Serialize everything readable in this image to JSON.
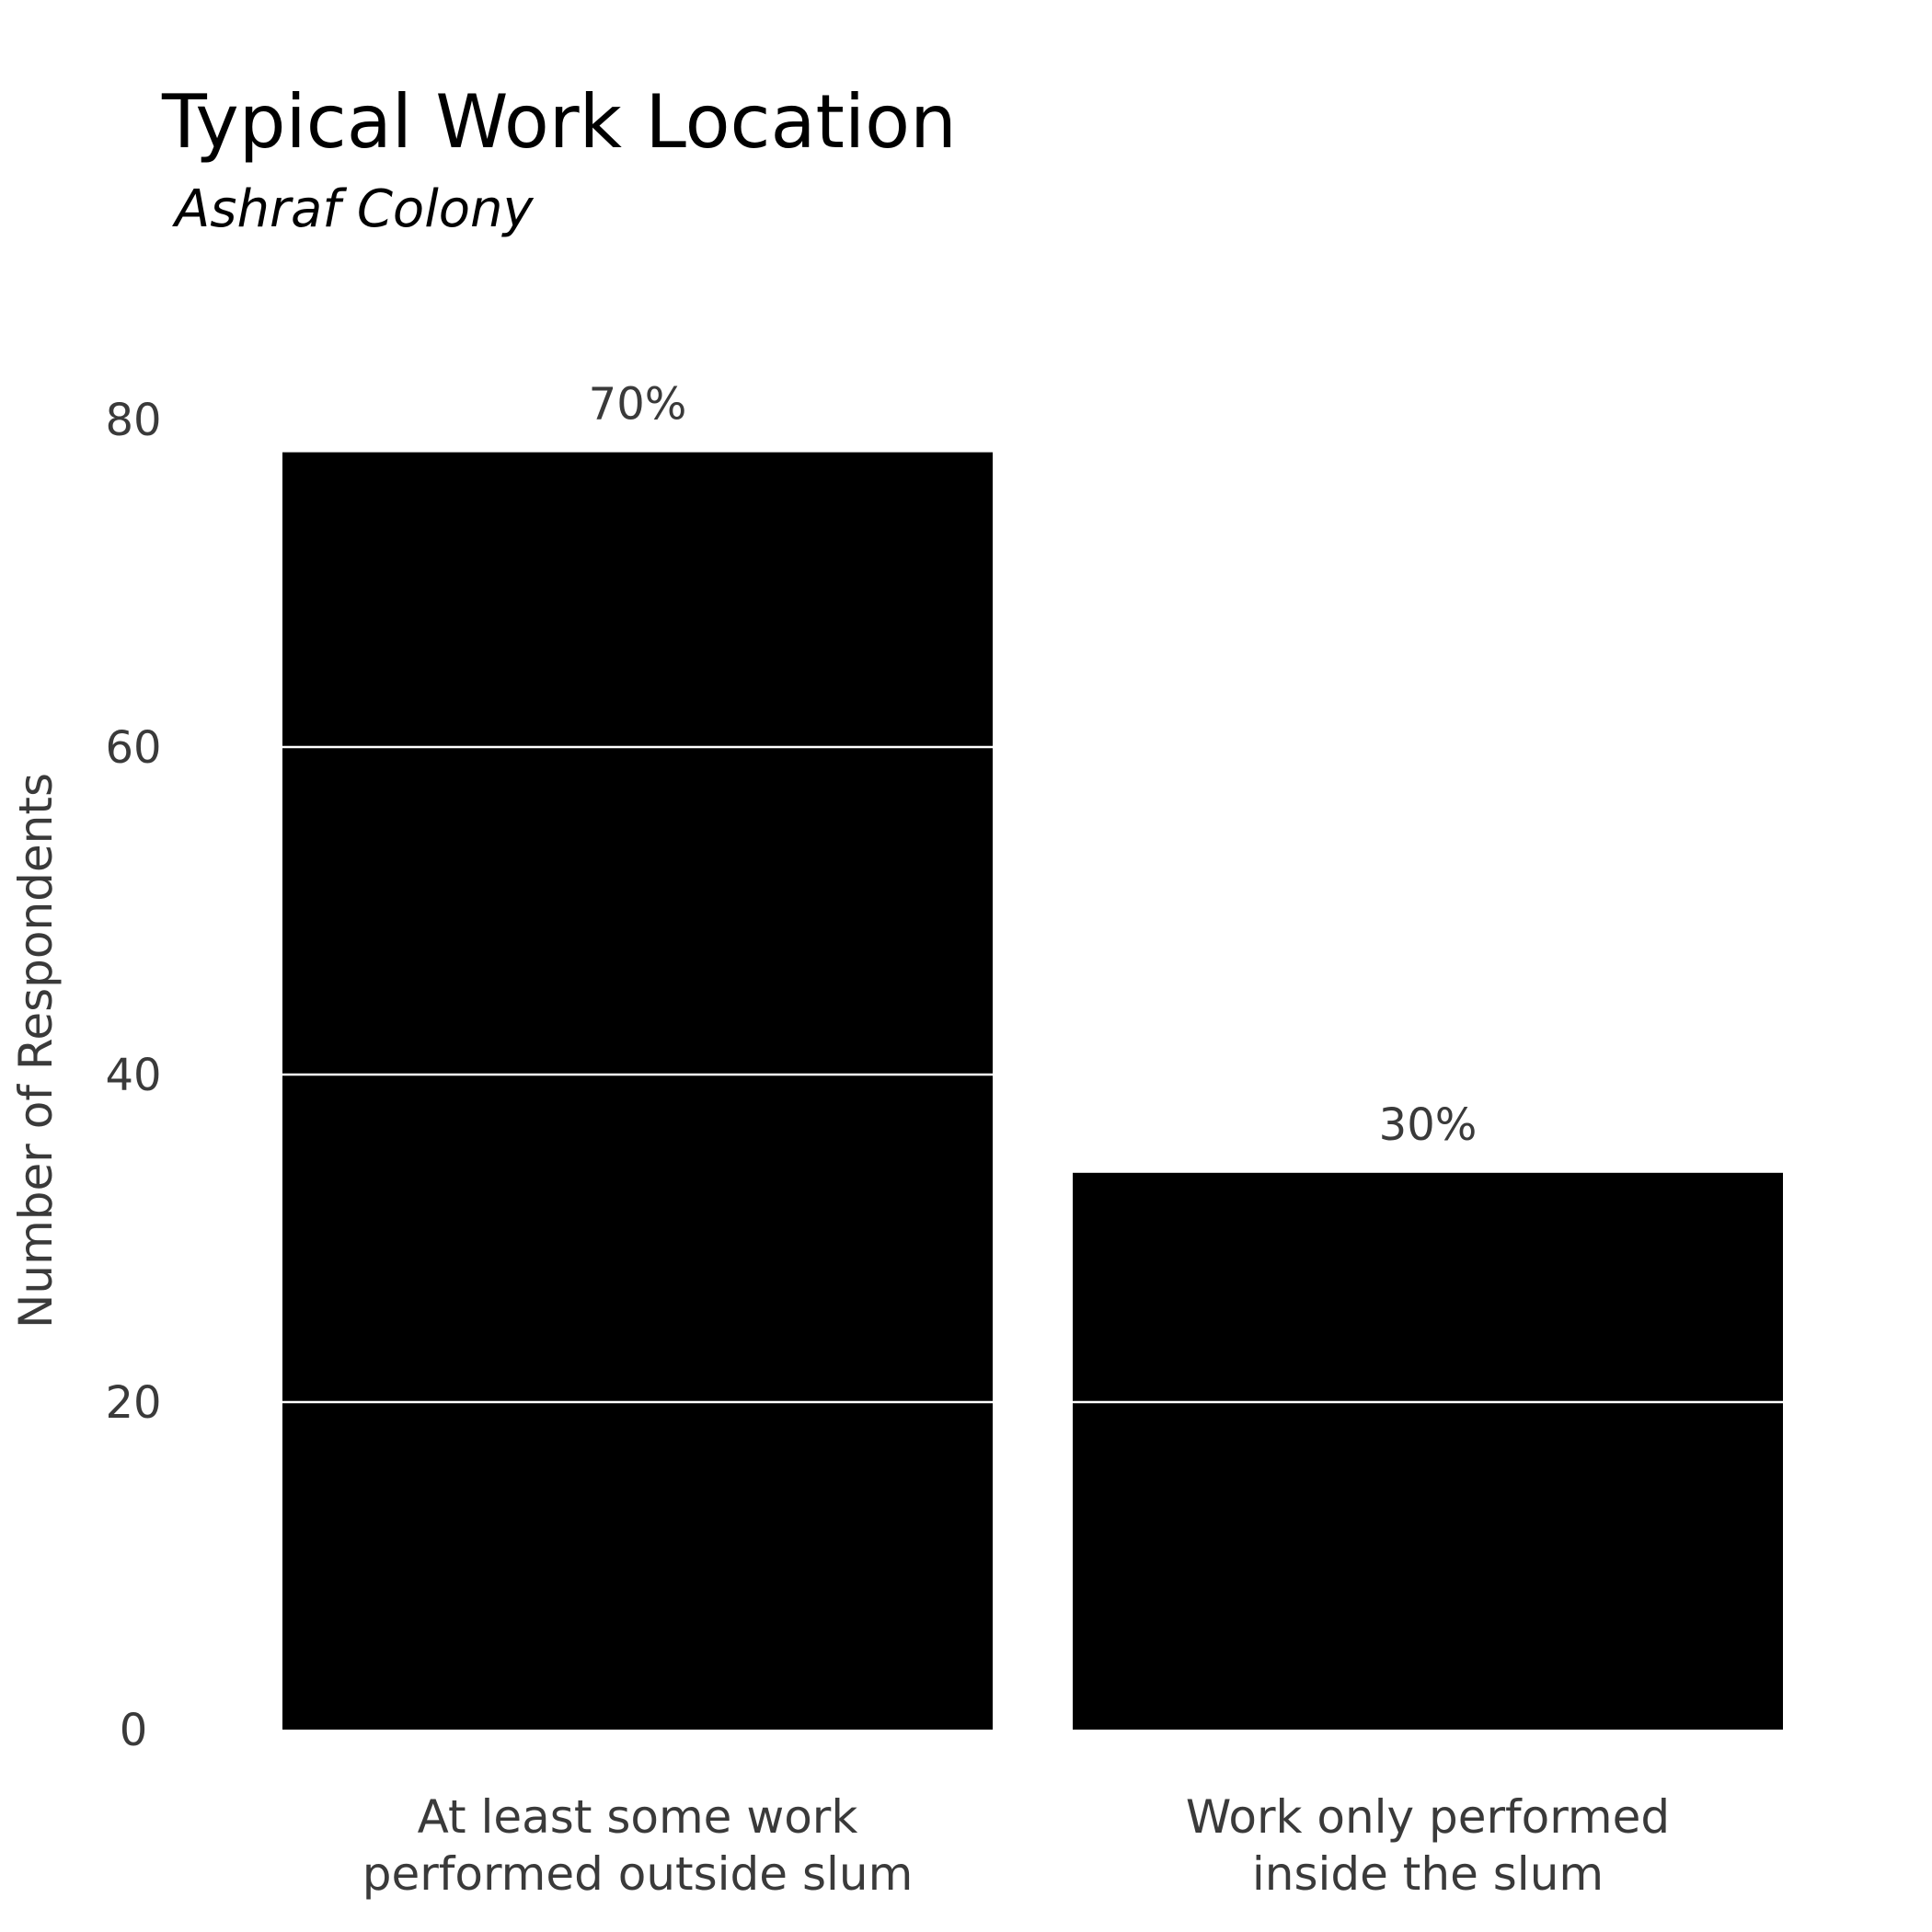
{
  "chart_data": {
    "type": "bar",
    "title": "Typical Work Location",
    "subtitle": "Ashraf Colony",
    "xlabel": "",
    "ylabel": "Number of Respondents",
    "categories": [
      [
        "At least some work",
        "performed outside slum"
      ],
      [
        "Work only performed",
        "inside the slum"
      ]
    ],
    "values": [
      78,
      34
    ],
    "data_labels": [
      "70%",
      "30%"
    ],
    "ylim": [
      0,
      80
    ],
    "yticks": [
      0,
      20,
      40,
      60,
      80
    ],
    "grid": true,
    "legend": "none",
    "colors": {
      "bar": "#000000",
      "grid": "#ffffff",
      "text": "#3a3a3a",
      "title": "#000000",
      "background": "#ffffff"
    }
  }
}
